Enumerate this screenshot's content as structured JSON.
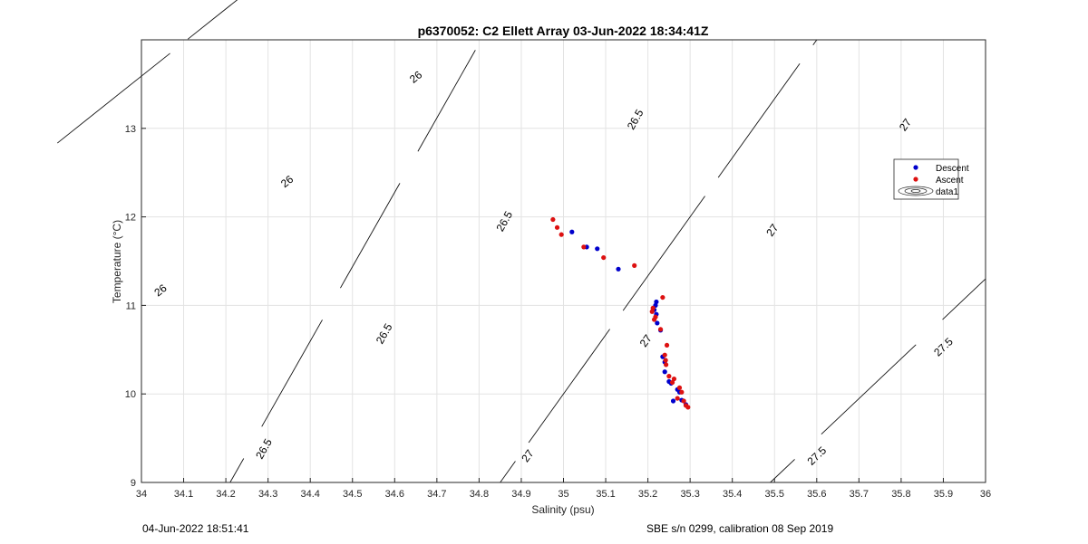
{
  "chart_data": {
    "type": "scatter",
    "title": "p6370052: C2 Ellett Array 03-Jun-2022 18:34:41Z",
    "xlabel": "Salinity (psu)",
    "ylabel": "Temperature (°C)",
    "xlim": [
      34,
      36
    ],
    "ylim": [
      9,
      14
    ],
    "x_ticks": [
      "34",
      "34.1",
      "34.2",
      "34.3",
      "34.4",
      "34.5",
      "34.6",
      "34.7",
      "34.8",
      "34.9",
      "35",
      "35.1",
      "35.2",
      "35.3",
      "35.4",
      "35.5",
      "35.6",
      "35.7",
      "35.8",
      "35.9",
      "36"
    ],
    "y_ticks": [
      "9",
      "10",
      "11",
      "12",
      "13"
    ],
    "grid": true,
    "legend": {
      "position": "right",
      "entries": [
        "Descent",
        "Ascent",
        "data1"
      ]
    },
    "series": [
      {
        "name": "Descent",
        "color": "#0000cc",
        "points": [
          [
            35.02,
            11.83
          ],
          [
            35.055,
            11.66
          ],
          [
            35.08,
            11.64
          ],
          [
            35.13,
            11.41
          ],
          [
            35.22,
            11.04
          ],
          [
            35.218,
            11.0
          ],
          [
            35.215,
            10.95
          ],
          [
            35.22,
            10.9
          ],
          [
            35.222,
            10.8
          ],
          [
            35.23,
            10.72
          ],
          [
            35.235,
            10.42
          ],
          [
            35.24,
            10.36
          ],
          [
            35.24,
            10.25
          ],
          [
            35.25,
            10.14
          ],
          [
            35.255,
            10.12
          ],
          [
            35.27,
            10.05
          ],
          [
            35.275,
            10.02
          ],
          [
            35.26,
            9.92
          ],
          [
            35.28,
            9.93
          ],
          [
            35.29,
            9.88
          ]
        ]
      },
      {
        "name": "Ascent",
        "color": "#dd1111",
        "points": [
          [
            34.975,
            11.97
          ],
          [
            34.985,
            11.88
          ],
          [
            34.995,
            11.8
          ],
          [
            35.048,
            11.66
          ],
          [
            35.095,
            11.54
          ],
          [
            35.168,
            11.45
          ],
          [
            35.235,
            11.09
          ],
          [
            35.212,
            10.97
          ],
          [
            35.21,
            10.93
          ],
          [
            35.218,
            10.87
          ],
          [
            35.215,
            10.84
          ],
          [
            35.23,
            10.73
          ],
          [
            35.245,
            10.55
          ],
          [
            35.24,
            10.44
          ],
          [
            35.242,
            10.38
          ],
          [
            35.243,
            10.33
          ],
          [
            35.25,
            10.2
          ],
          [
            35.262,
            10.17
          ],
          [
            35.258,
            10.13
          ],
          [
            35.275,
            10.07
          ],
          [
            35.28,
            10.02
          ],
          [
            35.27,
            9.95
          ],
          [
            35.285,
            9.92
          ],
          [
            35.29,
            9.87
          ],
          [
            35.295,
            9.85
          ]
        ]
      }
    ],
    "contours": [
      {
        "name": "data1",
        "lines": [
          {
            "label": "26",
            "from": [
              34,
              13.59
            ],
            "to": [
              34.108,
              14
            ],
            "labels_at": [
              [
                34.045,
                11.17
              ],
              [
                34.345,
                12.4
              ],
              [
                34.65,
                13.58
              ]
            ]
          },
          {
            "label": "26.5",
            "from": [
              34.21,
              9
            ],
            "to": [
              34.805,
              14
            ],
            "labels_at": [
              [
                34.29,
                9.38
              ],
              [
                34.575,
                10.68
              ],
              [
                34.86,
                11.95
              ],
              [
                35.17,
                13.1
              ]
            ]
          },
          {
            "label": "27",
            "from": [
              34.85,
              9
            ],
            "to": [
              35.6,
              14
            ],
            "labels_at": [
              [
                34.915,
                9.3
              ],
              [
                35.195,
                10.6
              ],
              [
                35.495,
                11.85
              ],
              [
                35.81,
                13.04
              ]
            ]
          },
          {
            "label": "27.5",
            "from": [
              35.49,
              9
            ],
            "to": [
              36,
              11.3
            ],
            "labels_at": [
              [
                35.6,
                9.3
              ],
              [
                35.9,
                10.53
              ]
            ]
          }
        ]
      }
    ]
  },
  "footer": {
    "left": "04-Jun-2022 18:51:41",
    "right": "SBE s/n 0299, calibration 08 Sep 2019"
  }
}
